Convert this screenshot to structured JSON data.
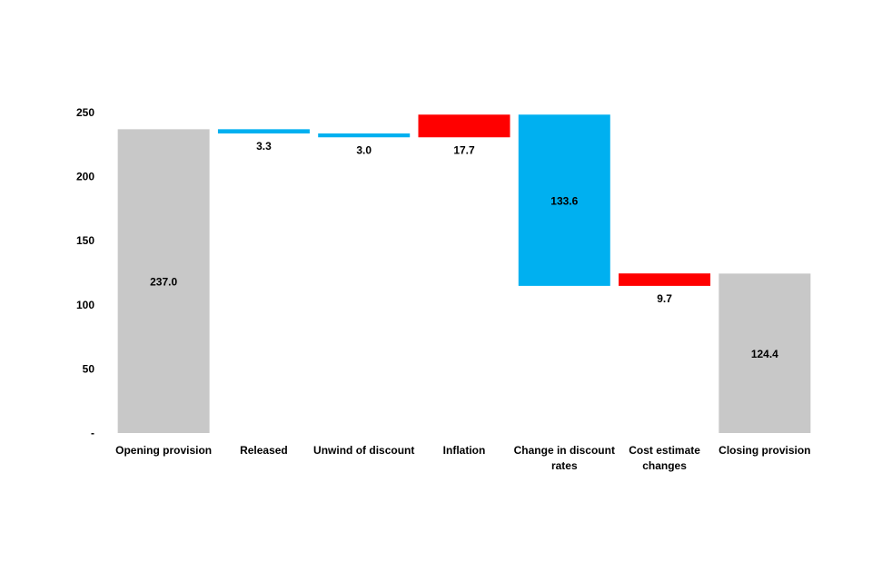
{
  "chart_data": {
    "type": "bar",
    "subtype": "waterfall",
    "title": "",
    "xlabel": "",
    "ylabel": "",
    "ylim": [
      0,
      250
    ],
    "yticks": [
      {
        "value": 0,
        "label": "-"
      },
      {
        "value": 50,
        "label": "50"
      },
      {
        "value": 100,
        "label": "100"
      },
      {
        "value": 150,
        "label": "150"
      },
      {
        "value": 200,
        "label": "200"
      },
      {
        "value": 250,
        "label": "250"
      }
    ],
    "grid": false,
    "legend": "none",
    "categories": [
      [
        "Opening provision"
      ],
      [
        "Released"
      ],
      [
        "Unwind of discount"
      ],
      [
        "Inflation"
      ],
      [
        "Change in discount",
        "rates"
      ],
      [
        "Cost estimate",
        "changes"
      ],
      [
        "Closing provision"
      ]
    ],
    "steps": [
      {
        "kind": "total",
        "value": 237.0,
        "label": "237.0",
        "color": "#C8C8C8"
      },
      {
        "kind": "decrease",
        "value": 3.3,
        "label": "3.3",
        "color": "#00B0F0"
      },
      {
        "kind": "decrease",
        "value": 3.0,
        "label": "3.0",
        "color": "#00B0F0"
      },
      {
        "kind": "increase",
        "value": 17.7,
        "label": "17.7",
        "color": "#FF0000"
      },
      {
        "kind": "decrease",
        "value": 133.6,
        "label": "133.6",
        "color": "#00B0F0"
      },
      {
        "kind": "increase",
        "value": 9.7,
        "label": "9.7",
        "color": "#FF0000"
      },
      {
        "kind": "total",
        "value": 124.4,
        "label": "124.4",
        "color": "#C8C8C8"
      }
    ]
  }
}
